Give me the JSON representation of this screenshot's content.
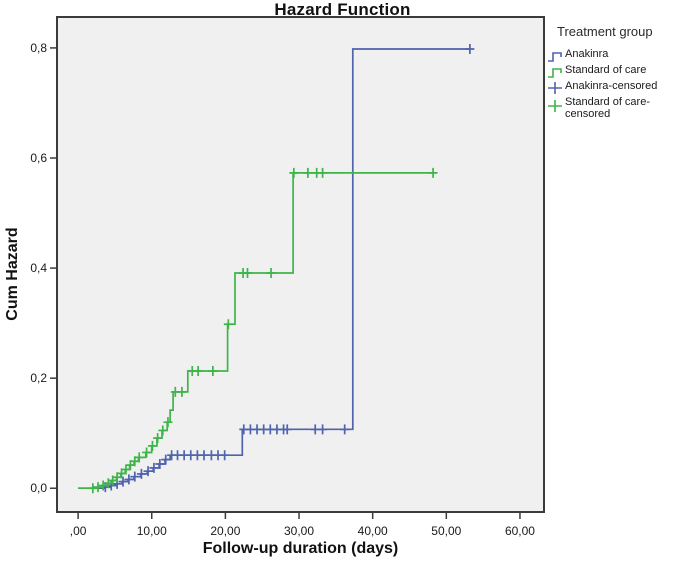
{
  "title": "Hazard Function",
  "colors": {
    "anakinra_blue": "#4f63ae",
    "standard_green": "#3eb44a",
    "plot_background": "#f0f0f0",
    "frame": "#3b3b3b",
    "text": "#1a1a1a"
  },
  "legend": {
    "title": "Treatment group",
    "entries": [
      {
        "label": "Anakinra",
        "marker": "step-line",
        "color": "#4f63ae"
      },
      {
        "label": "Standard of care",
        "marker": "step-line",
        "color": "#3eb44a"
      },
      {
        "label": "Anakinra-censored",
        "marker": "plus",
        "color": "#4f63ae"
      },
      {
        "label": "Standard of care-censored",
        "marker": "plus",
        "color": "#3eb44a"
      }
    ]
  },
  "chart_data": {
    "type": "line",
    "subtype": "step-cumulative-hazard",
    "title": "Hazard Function",
    "xlabel": "Follow-up duration (days)",
    "ylabel": "Cum Hazard",
    "grid": false,
    "legend_position": "right",
    "x_axis": {
      "lim": [
        -3,
        63.4
      ],
      "ticks": [
        {
          "v": 0,
          "label": ",00"
        },
        {
          "v": 10,
          "label": "10,00"
        },
        {
          "v": 20,
          "label": "20,00"
        },
        {
          "v": 30,
          "label": "30,00"
        },
        {
          "v": 40,
          "label": "40,00"
        },
        {
          "v": 50,
          "label": "50,00"
        },
        {
          "v": 60,
          "label": "60,00"
        }
      ]
    },
    "y_axis": {
      "lim": [
        -0.045,
        0.858
      ],
      "ticks": [
        {
          "v": 0.0,
          "label": "0,0"
        },
        {
          "v": 0.2,
          "label": "0,2"
        },
        {
          "v": 0.4,
          "label": "0,4"
        },
        {
          "v": 0.6,
          "label": "0,6"
        },
        {
          "v": 0.8,
          "label": "0,8"
        }
      ]
    },
    "series": [
      {
        "name": "Anakinra",
        "color": "#4f63ae",
        "points": [
          [
            0,
            0
          ],
          [
            3.5,
            0.002
          ],
          [
            4.4,
            0.005
          ],
          [
            5.2,
            0.008
          ],
          [
            6.0,
            0.012
          ],
          [
            6.8,
            0.016
          ],
          [
            7.6,
            0.021
          ],
          [
            8.5,
            0.026
          ],
          [
            9.4,
            0.031
          ],
          [
            10.2,
            0.037
          ],
          [
            11.0,
            0.044
          ],
          [
            11.8,
            0.052
          ],
          [
            12.5,
            0.06
          ],
          [
            22.3,
            0.107
          ],
          [
            37.3,
            0.798
          ],
          [
            53.2,
            0.798
          ]
        ],
        "censored": [
          [
            3.7,
            0.002
          ],
          [
            4.5,
            0.005
          ],
          [
            5.3,
            0.008
          ],
          [
            6.1,
            0.012
          ],
          [
            6.9,
            0.016
          ],
          [
            7.7,
            0.021
          ],
          [
            8.6,
            0.026
          ],
          [
            9.5,
            0.031
          ],
          [
            10.3,
            0.037
          ],
          [
            11.1,
            0.044
          ],
          [
            11.9,
            0.052
          ],
          [
            12.7,
            0.06
          ],
          [
            13.5,
            0.06
          ],
          [
            14.4,
            0.06
          ],
          [
            15.3,
            0.06
          ],
          [
            16.2,
            0.06
          ],
          [
            17.1,
            0.06
          ],
          [
            18.1,
            0.06
          ],
          [
            19.0,
            0.06
          ],
          [
            19.9,
            0.06
          ],
          [
            22.5,
            0.107
          ],
          [
            23.4,
            0.107
          ],
          [
            24.3,
            0.107
          ],
          [
            25.2,
            0.107
          ],
          [
            26.1,
            0.107
          ],
          [
            27.0,
            0.107
          ],
          [
            27.9,
            0.107
          ],
          [
            28.4,
            0.107
          ],
          [
            32.2,
            0.107
          ],
          [
            33.2,
            0.107
          ],
          [
            36.2,
            0.107
          ],
          [
            53.2,
            0.798
          ]
        ]
      },
      {
        "name": "Standard of care",
        "color": "#3eb44a",
        "points": [
          [
            0,
            0
          ],
          [
            2.6,
            0.002
          ],
          [
            3.3,
            0.005
          ],
          [
            4.0,
            0.009
          ],
          [
            4.6,
            0.014
          ],
          [
            5.2,
            0.02
          ],
          [
            5.8,
            0.027
          ],
          [
            6.4,
            0.034
          ],
          [
            7.0,
            0.042
          ],
          [
            7.6,
            0.049
          ],
          [
            8.2,
            0.056
          ],
          [
            9.2,
            0.065
          ],
          [
            10.0,
            0.077
          ],
          [
            10.7,
            0.091
          ],
          [
            11.4,
            0.105
          ],
          [
            12.1,
            0.12
          ],
          [
            12.5,
            0.142
          ],
          [
            12.9,
            0.175
          ],
          [
            14.9,
            0.213
          ],
          [
            20.3,
            0.298
          ],
          [
            21.3,
            0.391
          ],
          [
            29.2,
            0.573
          ],
          [
            48.2,
            0.573
          ]
        ],
        "censored": [
          [
            2.0,
            0.0
          ],
          [
            2.7,
            0.002
          ],
          [
            3.4,
            0.005
          ],
          [
            4.1,
            0.009
          ],
          [
            4.7,
            0.014
          ],
          [
            5.3,
            0.02
          ],
          [
            5.9,
            0.027
          ],
          [
            6.5,
            0.034
          ],
          [
            7.1,
            0.042
          ],
          [
            7.7,
            0.049
          ],
          [
            8.3,
            0.056
          ],
          [
            9.3,
            0.065
          ],
          [
            10.1,
            0.077
          ],
          [
            10.8,
            0.091
          ],
          [
            11.5,
            0.105
          ],
          [
            12.2,
            0.12
          ],
          [
            13.2,
            0.175
          ],
          [
            14.1,
            0.175
          ],
          [
            15.5,
            0.213
          ],
          [
            16.3,
            0.213
          ],
          [
            18.3,
            0.213
          ],
          [
            20.4,
            0.298
          ],
          [
            22.4,
            0.391
          ],
          [
            23.0,
            0.391
          ],
          [
            26.2,
            0.391
          ],
          [
            29.3,
            0.573
          ],
          [
            31.2,
            0.573
          ],
          [
            32.4,
            0.573
          ],
          [
            33.2,
            0.573
          ],
          [
            48.2,
            0.573
          ]
        ]
      }
    ]
  }
}
